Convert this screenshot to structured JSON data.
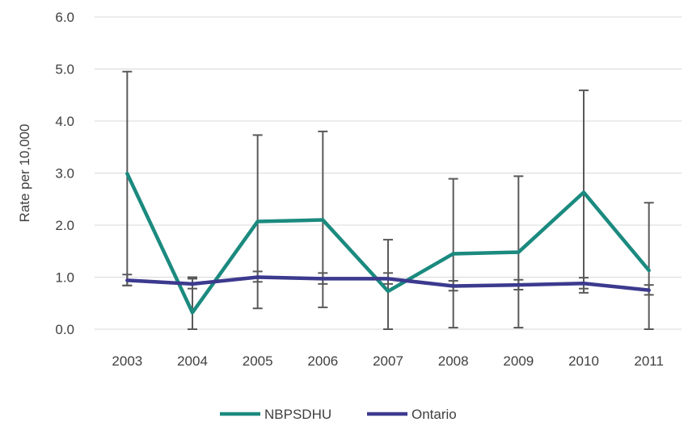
{
  "chart_data": {
    "type": "line",
    "title": "",
    "xlabel": "",
    "ylabel": "Rate per 10,000",
    "ylim": [
      0,
      6
    ],
    "y_ticks": [
      "0.0",
      "1.0",
      "2.0",
      "3.0",
      "4.0",
      "5.0",
      "6.0"
    ],
    "grid": "horizontal",
    "legend_position": "bottom",
    "categories": [
      "2003",
      "2004",
      "2005",
      "2006",
      "2007",
      "2008",
      "2009",
      "2010",
      "2011"
    ],
    "series": [
      {
        "name": "NBPSDHU",
        "color": "#1b8a7f",
        "values": [
          2.99,
          0.32,
          2.07,
          2.1,
          0.73,
          1.45,
          1.48,
          2.63,
          1.13
        ],
        "error_low": [
          0.84,
          0.0,
          0.4,
          0.42,
          0.0,
          0.03,
          0.03,
          0.7,
          0.0
        ],
        "error_high": [
          4.95,
          1.0,
          3.73,
          3.8,
          1.72,
          2.89,
          2.94,
          4.59,
          2.43
        ]
      },
      {
        "name": "Ontario",
        "color": "#3c3a8e",
        "values": [
          0.94,
          0.87,
          1.0,
          0.97,
          0.97,
          0.83,
          0.85,
          0.88,
          0.75
        ],
        "error_low": [
          0.84,
          0.78,
          0.91,
          0.87,
          0.87,
          0.74,
          0.76,
          0.78,
          0.66
        ],
        "error_high": [
          1.05,
          0.97,
          1.11,
          1.08,
          1.08,
          0.93,
          0.95,
          0.99,
          0.85
        ]
      }
    ]
  }
}
